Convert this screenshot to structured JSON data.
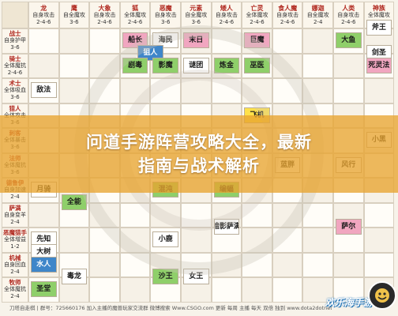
{
  "banner": {
    "line1": "问道手游阵营攻略大全，最新",
    "line2": "指南与战术解析"
  },
  "columns": [
    {
      "name": "龙",
      "sub": "自身攻击",
      "sub2": "2-4-6"
    },
    {
      "name": "鹰",
      "sub": "自全魔攻",
      "sub2": "3-6"
    },
    {
      "name": "大象",
      "sub": "自身攻击",
      "sub2": "2-4-6"
    },
    {
      "name": "狐",
      "sub": "全体魔攻",
      "sub2": "2-4-6"
    },
    {
      "name": "恶魔",
      "sub": "自身攻击",
      "sub2": "3-6"
    },
    {
      "name": "元素",
      "sub": "自全魔攻",
      "sub2": "3-6"
    },
    {
      "name": "矮人",
      "sub": "自身攻击",
      "sub2": "2-4-6"
    },
    {
      "name": "亡灵",
      "sub": "全体魔攻",
      "sub2": "2-4-6"
    },
    {
      "name": "食人魔",
      "sub": "自身攻击",
      "sub2": "2-4-6"
    },
    {
      "name": "娜迦",
      "sub": "自全魔攻",
      "sub2": "2-4"
    },
    {
      "name": "人类",
      "sub": "自身攻击",
      "sub2": "2-4-6"
    },
    {
      "name": "神族",
      "sub": "全体魔攻",
      "sub2": "2-4-6"
    }
  ],
  "rows": [
    {
      "name": "战士",
      "sub": "自身护甲",
      "sub2": "3-6"
    },
    {
      "name": "骑士",
      "sub": "全体魔抗",
      "sub2": "2-4-6"
    },
    {
      "name": "术士",
      "sub": "全体吸血",
      "sub2": "3-6"
    },
    {
      "name": "猎人",
      "sub": "全体攻击",
      "sub2": "3-6"
    },
    {
      "name": "刺客",
      "sub": "全体暴击",
      "sub2": "3-6"
    },
    {
      "name": "法师",
      "sub": "全体魔抗",
      "sub2": "3-6"
    },
    {
      "name": "德鲁伊",
      "sub": "自身加速",
      "sub2": "2-4"
    },
    {
      "name": "萨满",
      "sub": "自身变羊",
      "sub2": "2-4"
    },
    {
      "name": "恶魔猎手",
      "sub": "全体增益",
      "sub2": "1-2"
    },
    {
      "name": "机械",
      "sub": "自身回血",
      "sub2": "2-4"
    },
    {
      "name": "牧师",
      "sub": "全体魔抗",
      "sub2": "2-4"
    }
  ],
  "heroes": [
    {
      "text": "船长",
      "r": 0,
      "c": 3,
      "color": "#f1a6c0"
    },
    {
      "text": "海民",
      "r": 0,
      "c": 4,
      "color": "#ffffff"
    },
    {
      "text": "狙人",
      "r": 0.5,
      "c": 3.5,
      "color": "#3f86c9"
    },
    {
      "text": "末日",
      "r": 0,
      "c": 5,
      "color": "#f1a6c0"
    },
    {
      "text": "巨魔",
      "r": 0,
      "c": 7,
      "color": "#f1a6c0"
    },
    {
      "text": "大鱼",
      "r": 0,
      "c": 10,
      "color": "#8fcf6a"
    },
    {
      "text": "斧王",
      "r": -0.5,
      "c": 11,
      "color": "#ffffff"
    },
    {
      "text": "剑圣",
      "r": 0.5,
      "c": 11,
      "color": "#ffffff"
    },
    {
      "text": "剧毒",
      "r": 1,
      "c": 3,
      "color": "#8fcf6a"
    },
    {
      "text": "影魔",
      "r": 1,
      "c": 4,
      "color": "#8fcf6a"
    },
    {
      "text": "谜团",
      "r": 1,
      "c": 5,
      "color": "#ffffff"
    },
    {
      "text": "炼金",
      "r": 1,
      "c": 6,
      "color": "#8fcf6a"
    },
    {
      "text": "巫医",
      "r": 1,
      "c": 7,
      "color": "#8fcf6a"
    },
    {
      "text": "死灵法",
      "r": 1,
      "c": 11,
      "color": "#f1a6c0"
    },
    {
      "text": "敌法",
      "r": 2,
      "c": 0,
      "color": "#ffffff"
    },
    {
      "text": "飞机",
      "r": 3,
      "c": 7,
      "color": "#ffe14a"
    },
    {
      "text": "小黑",
      "r": 4,
      "c": 11,
      "color": "#ffffff"
    },
    {
      "text": "蓝胖",
      "r": 5,
      "c": 8,
      "color": "#ffffff"
    },
    {
      "text": "风行",
      "r": 5,
      "c": 10,
      "color": "#ffffff"
    },
    {
      "text": "月骑",
      "r": 6,
      "c": 0,
      "color": "#ffffff"
    },
    {
      "text": "混沌",
      "r": 6,
      "c": 4,
      "color": "#8fcf6a"
    },
    {
      "text": "编蝠",
      "r": 6,
      "c": 6,
      "color": "#8fcf6a"
    },
    {
      "text": "全能",
      "r": 6.5,
      "c": 1,
      "color": "#8fcf6a"
    },
    {
      "text": "萨尔",
      "r": 7.5,
      "c": 10,
      "color": "#f1a6c0"
    },
    {
      "text": "暗影萨满",
      "r": 7.5,
      "c": 6,
      "color": "#ffffff"
    },
    {
      "text": "先知",
      "r": 8,
      "c": 0,
      "color": "#ffffff"
    },
    {
      "text": "小鹿",
      "r": 8,
      "c": 4,
      "color": "#ffffff"
    },
    {
      "text": "大树",
      "r": 8.5,
      "c": 0,
      "color": "#ffffff"
    },
    {
      "text": "水人",
      "r": 9,
      "c": 0,
      "color": "#3f86c9"
    },
    {
      "text": "毒龙",
      "r": 9.5,
      "c": 1,
      "color": "#ffffff"
    },
    {
      "text": "沙王",
      "r": 9.5,
      "c": 4,
      "color": "#8fcf6a"
    },
    {
      "text": "女王",
      "r": 9.5,
      "c": 5,
      "color": "#ffffff"
    },
    {
      "text": "圣堂",
      "r": 10,
      "c": 0,
      "color": "#8fcf6a"
    }
  ],
  "footer": "刀塔自走棋 | 群号：725660176 加入主播的魔兽玩家交流群 微博搜索 Www.CSGO.com 更新 每周 主播 每天 双倍 独到 www.dota2dotnet.com 加入主播群 ZZ51.htm",
  "logo_text": "欢乐海手游",
  "colors": {
    "pink": "#f1a6c0",
    "green": "#8fcf6a",
    "blue": "#3f86c9",
    "yellow": "#ffe14a",
    "banner": "#e8a430"
  }
}
